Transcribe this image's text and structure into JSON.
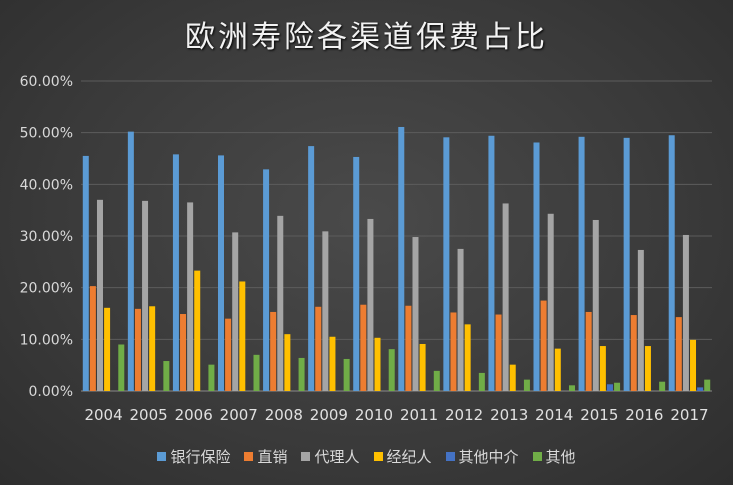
{
  "chart_data": {
    "type": "bar",
    "title": "欧洲寿险各渠道保费占比",
    "categories": [
      "2004",
      "2005",
      "2006",
      "2007",
      "2008",
      "2009",
      "2010",
      "2011",
      "2012",
      "2013",
      "2014",
      "2015",
      "2016",
      "2017"
    ],
    "ylim": [
      0,
      60
    ],
    "yticks": [
      "0.00%",
      "10.00%",
      "20.00%",
      "30.00%",
      "40.00%",
      "50.00%",
      "60.00%"
    ],
    "grid": true,
    "legend_position": "bottom",
    "series": [
      {
        "name": "银行保险",
        "color": "#5b9bd5",
        "values": [
          45.5,
          50.2,
          45.8,
          45.6,
          42.9,
          47.4,
          45.3,
          51.1,
          49.1,
          49.4,
          48.1,
          49.2,
          49.0,
          49.5
        ]
      },
      {
        "name": "直销",
        "color": "#ed7d31",
        "values": [
          20.3,
          15.9,
          14.9,
          14.0,
          15.3,
          16.3,
          16.7,
          16.5,
          15.2,
          14.8,
          17.5,
          15.3,
          14.7,
          14.3
        ]
      },
      {
        "name": "代理人",
        "color": "#a5a5a5",
        "values": [
          37.0,
          36.8,
          36.5,
          30.7,
          33.9,
          30.9,
          33.3,
          29.8,
          27.5,
          36.3,
          34.3,
          33.1,
          27.3,
          30.2
        ]
      },
      {
        "name": "经纪人",
        "color": "#ffc000",
        "values": [
          16.1,
          16.4,
          23.3,
          21.2,
          11.0,
          10.5,
          10.3,
          9.1,
          12.9,
          5.1,
          8.2,
          8.7,
          8.7,
          9.9
        ]
      },
      {
        "name": "其他中介",
        "color": "#4472c4",
        "values": [
          0,
          0,
          0,
          0,
          0,
          0,
          0,
          0,
          0,
          0,
          0,
          1.3,
          0,
          0.7
        ]
      },
      {
        "name": "其他",
        "color": "#70ad47",
        "values": [
          9.0,
          5.8,
          5.1,
          7.0,
          6.4,
          6.2,
          8.1,
          3.9,
          3.5,
          2.2,
          1.1,
          1.6,
          1.8,
          2.2
        ]
      }
    ]
  }
}
